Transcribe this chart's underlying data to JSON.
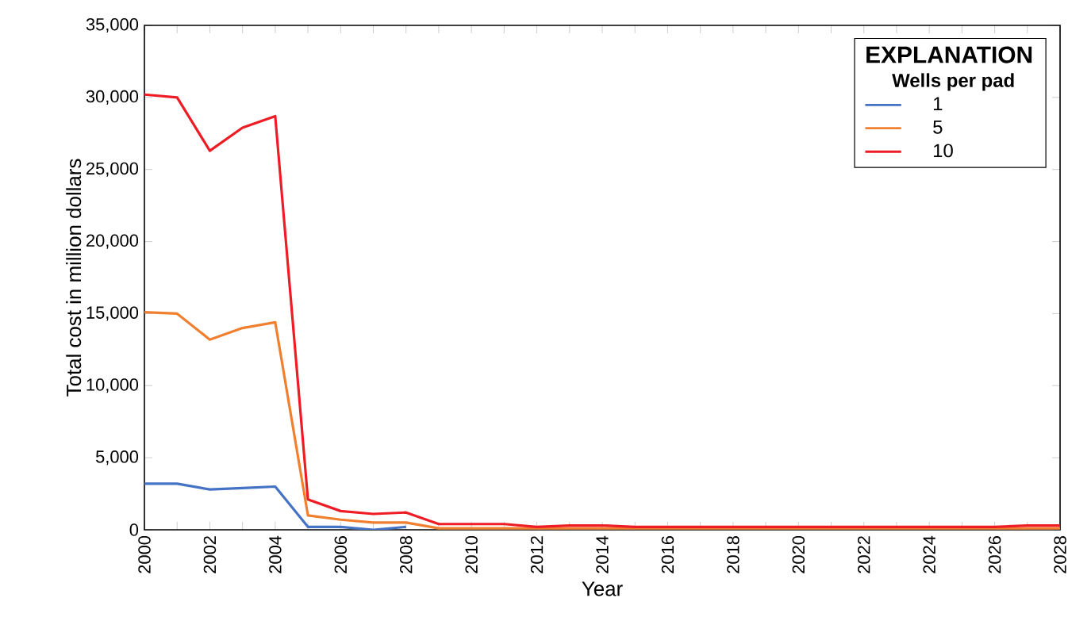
{
  "chart_data": {
    "type": "line",
    "xlabel": "Year",
    "ylabel": "Total cost in million dollars",
    "legend_title": "EXPLANATION",
    "annotations": [
      "Wells per pad"
    ],
    "legend": "top right",
    "grid": false,
    "line_style": "solid",
    "marker": "none",
    "x": [
      2000,
      2001,
      2002,
      2003,
      2004,
      2005,
      2006,
      2007,
      2008,
      2009,
      2010,
      2011,
      2012,
      2013,
      2014,
      2015,
      2016,
      2017,
      2018,
      2019,
      2020,
      2021,
      2022,
      2023,
      2024,
      2025,
      2026,
      2027,
      2028
    ],
    "series": [
      {
        "name": "1",
        "color": "#4472c4",
        "values": [
          3200,
          3200,
          2800,
          2900,
          3000,
          200,
          200,
          0,
          200,
          null,
          null,
          null,
          null,
          null,
          null,
          null,
          null,
          null,
          null,
          null,
          null,
          null,
          null,
          null,
          null,
          null,
          null,
          null,
          null
        ]
      },
      {
        "name": "5",
        "color": "#f08030",
        "values": [
          15100,
          15000,
          13200,
          14000,
          14400,
          1000,
          700,
          500,
          500,
          100,
          100,
          100,
          100,
          100,
          100,
          100,
          100,
          100,
          100,
          100,
          100,
          100,
          100,
          100,
          100,
          100,
          100,
          100,
          100
        ]
      },
      {
        "name": "10",
        "color": "#ee1c24",
        "values": [
          30200,
          30000,
          26300,
          27900,
          28700,
          2100,
          1300,
          1100,
          1200,
          400,
          400,
          400,
          200,
          300,
          300,
          200,
          200,
          200,
          200,
          200,
          200,
          200,
          200,
          200,
          200,
          200,
          200,
          300,
          300
        ]
      }
    ],
    "xlim": [
      2000,
      2028
    ],
    "ylim": [
      0,
      35000
    ],
    "xticks": [
      2000,
      {
        "value": 2001,
        "label": null
      },
      2002,
      {
        "value": 2003,
        "label": null
      },
      2004,
      {
        "value": 2005,
        "label": null
      },
      2006,
      {
        "value": 2007,
        "label": null
      },
      2008,
      {
        "value": 2009,
        "label": null
      },
      2010,
      {
        "value": 2011,
        "label": null
      },
      2012,
      {
        "value": 2013,
        "label": null
      },
      2014,
      {
        "value": 2015,
        "label": null
      },
      2016,
      {
        "value": 2017,
        "label": null
      },
      2018,
      {
        "value": 2019,
        "label": null
      },
      2020,
      {
        "value": 2021,
        "label": null
      },
      2022,
      {
        "value": 2023,
        "label": null
      },
      2024,
      {
        "value": 2025,
        "label": null
      },
      2026,
      {
        "value": 2027,
        "label": null
      },
      2028
    ],
    "yticks": [
      0,
      {
        "value": 5000,
        "label": "5,000"
      },
      {
        "value": 10000,
        "label": "10,000"
      },
      {
        "value": 15000,
        "label": "15,000"
      },
      {
        "value": 20000,
        "label": "20,000"
      },
      {
        "value": 25000,
        "label": "25,000"
      },
      {
        "value": 30000,
        "label": "30,000"
      },
      {
        "value": 35000,
        "label": "35,000"
      }
    ]
  }
}
